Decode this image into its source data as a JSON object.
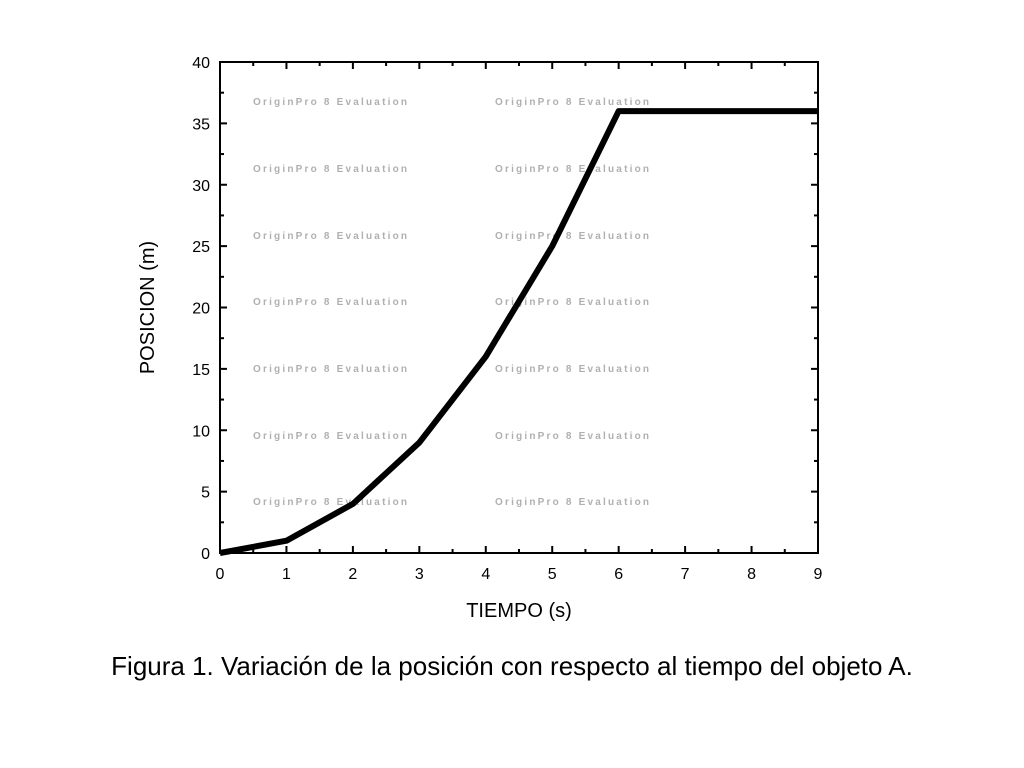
{
  "chart_data": {
    "type": "line",
    "xlabel": "TIEMPO (s)",
    "ylabel": "POSICION (m)",
    "xlim": [
      0,
      9
    ],
    "ylim": [
      0,
      40
    ],
    "xticks": [
      "0",
      "1",
      "2",
      "3",
      "4",
      "5",
      "6",
      "7",
      "8",
      "9"
    ],
    "yticks": [
      "0",
      "5",
      "10",
      "15",
      "20",
      "25",
      "30",
      "35",
      "40"
    ],
    "grid": false,
    "series": [
      {
        "name": "Objeto A",
        "color": "#000000",
        "x": [
          0,
          1,
          2,
          3,
          4,
          5,
          6,
          9
        ],
        "y": [
          0,
          1,
          4,
          9,
          16,
          25,
          36,
          36
        ]
      }
    ],
    "watermark": "OriginPro 8 Evaluation"
  },
  "caption": "Figura 1. Variación de la posición con respecto al tiempo del objeto A."
}
